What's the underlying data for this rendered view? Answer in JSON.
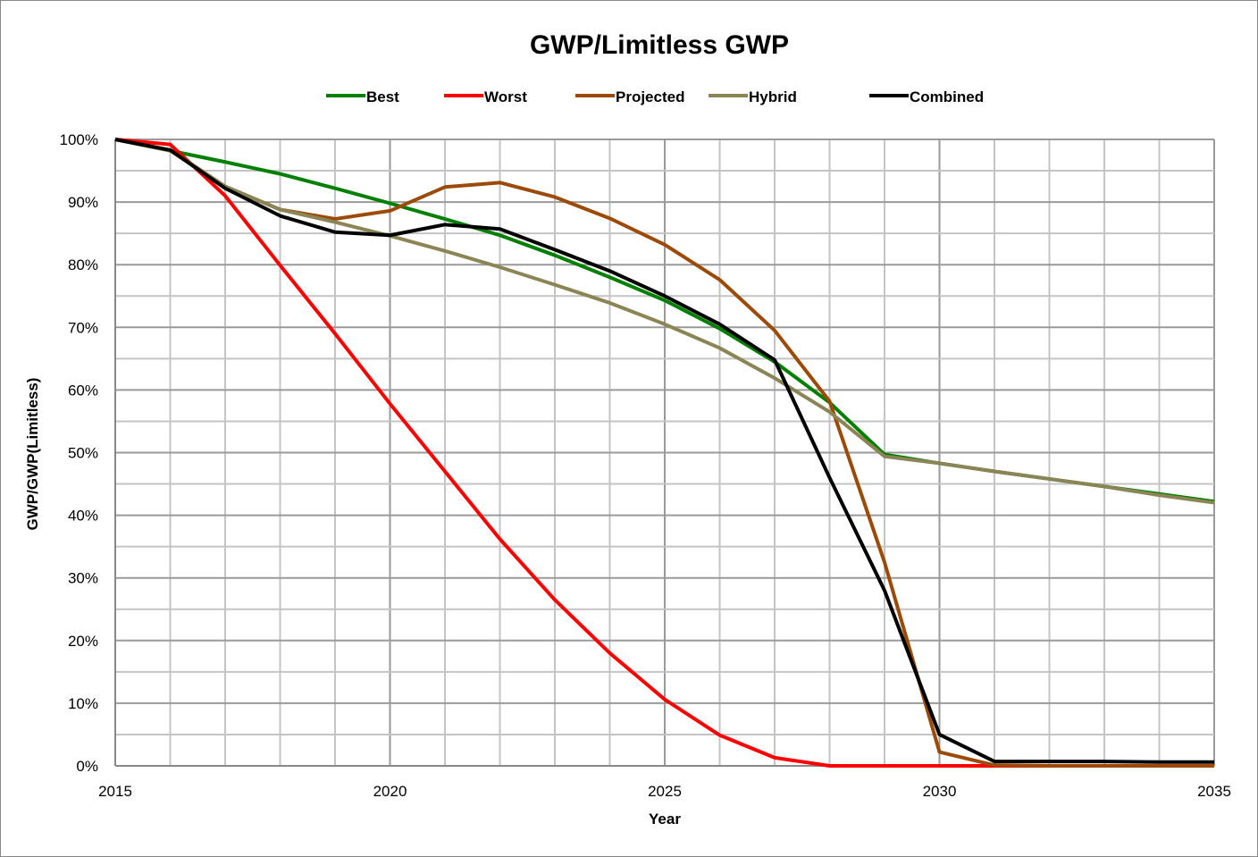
{
  "chart_data": {
    "type": "line",
    "title": "GWP/Limitless GWP",
    "xlabel": "Year",
    "ylabel": "GWP/GWP(Limitless)",
    "xlim": [
      2015,
      2035
    ],
    "ylim": [
      0,
      100
    ],
    "x_ticks": [
      2015,
      2020,
      2025,
      2030,
      2035
    ],
    "y_ticks": [
      "0%",
      "10%",
      "20%",
      "30%",
      "40%",
      "50%",
      "60%",
      "70%",
      "80%",
      "90%",
      "100%"
    ],
    "grid": true,
    "legend_placement": "top",
    "x": [
      2015,
      2016,
      2017,
      2018,
      2019,
      2020,
      2021,
      2022,
      2023,
      2024,
      2025,
      2026,
      2027,
      2028,
      2029,
      2030,
      2031,
      2032,
      2033,
      2034,
      2035
    ],
    "series": [
      {
        "name": "Best",
        "color": "#008000",
        "values": [
          100,
          98.2,
          96.4,
          94.5,
          92.2,
          89.8,
          87.3,
          84.7,
          81.5,
          78,
          74.3,
          69.8,
          64.5,
          58,
          49.7,
          48.3,
          47,
          45.8,
          44.6,
          43.4,
          42.2
        ]
      },
      {
        "name": "Worst",
        "color": "#ff0000",
        "values": [
          100,
          99.2,
          91,
          79.9,
          69,
          57.8,
          47,
          36.2,
          26.5,
          18,
          10.6,
          4.9,
          1.3,
          0,
          0,
          0,
          0,
          0,
          0,
          0,
          0
        ]
      },
      {
        "name": "Projected",
        "color": "#9c4a06",
        "values": [
          100,
          98.3,
          92.5,
          88.8,
          87.3,
          88.6,
          92.4,
          93.1,
          90.8,
          87.4,
          83.2,
          77.6,
          69.5,
          58.2,
          32.5,
          2.2,
          0.1,
          0,
          0,
          0,
          0
        ]
      },
      {
        "name": "Hybrid",
        "color": "#8b8455",
        "values": [
          100,
          98.2,
          92.5,
          88.8,
          86.8,
          84.6,
          82.2,
          79.6,
          76.8,
          73.9,
          70.5,
          66.7,
          61.9,
          56.5,
          49.4,
          48.3,
          47,
          45.8,
          44.6,
          43.2,
          42
        ]
      },
      {
        "name": "Combined",
        "color": "#000000",
        "values": [
          100,
          98.3,
          92.2,
          87.8,
          85.2,
          84.7,
          86.4,
          85.7,
          82.4,
          79,
          75,
          70.5,
          64.8,
          46,
          28,
          5,
          0.7,
          0.7,
          0.7,
          0.6,
          0.6
        ]
      }
    ]
  }
}
